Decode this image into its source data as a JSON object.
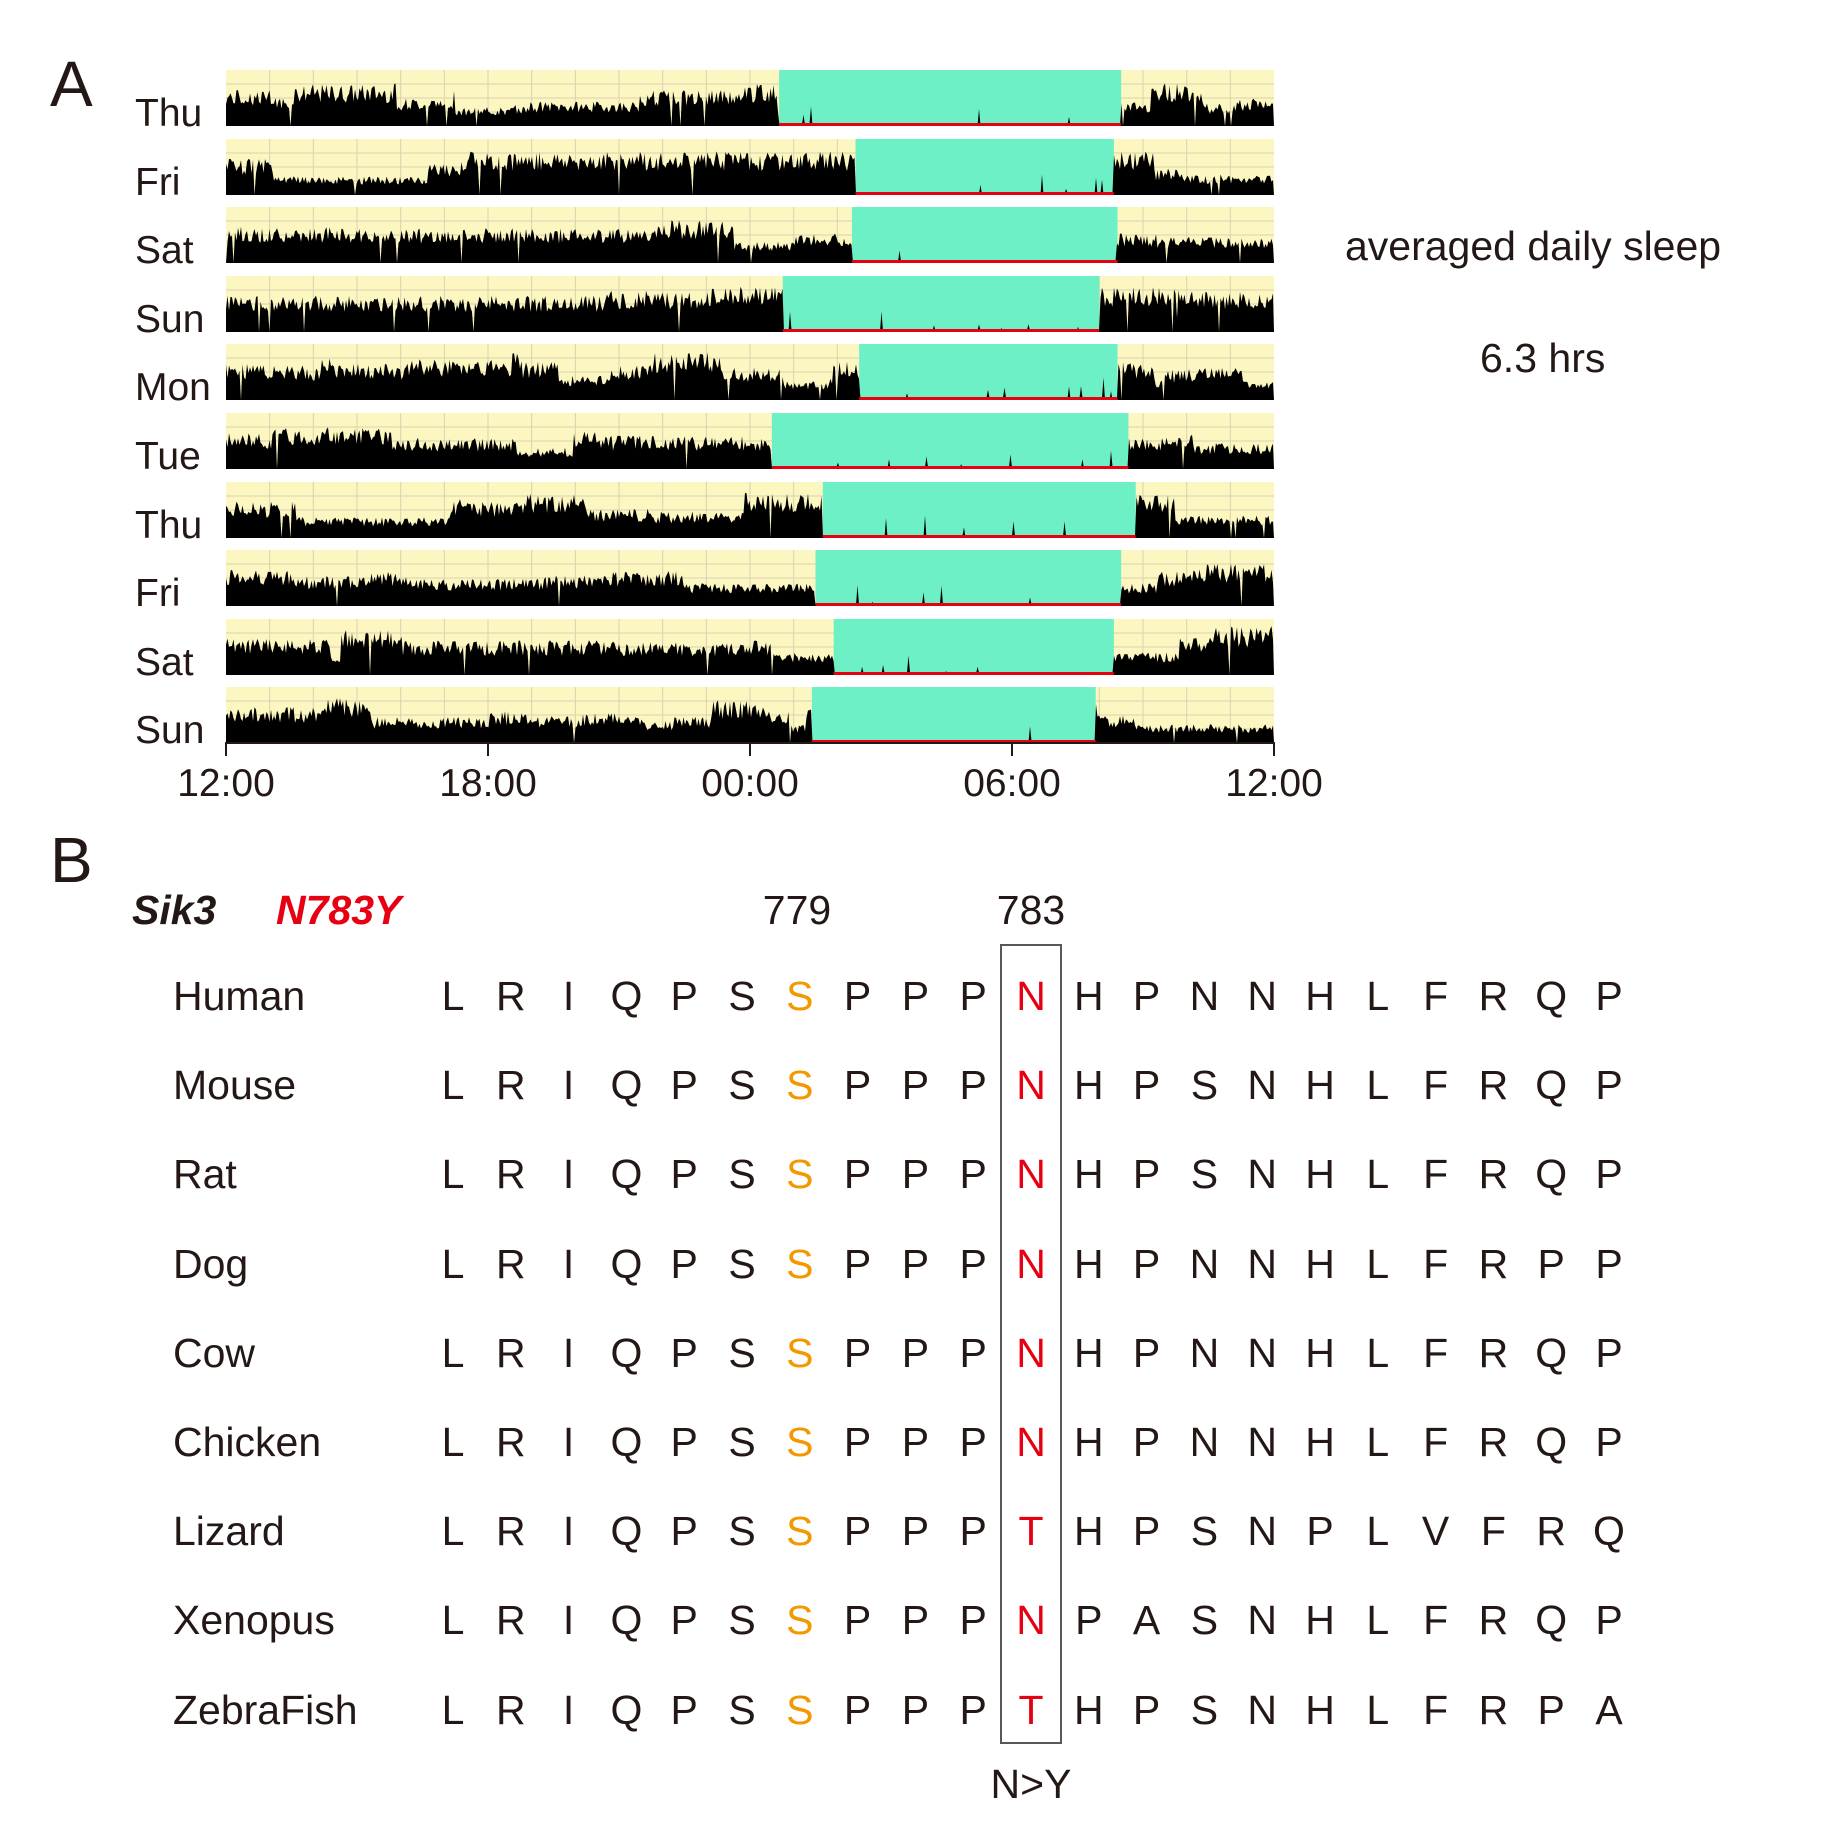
{
  "panel_a": {
    "letter": "A",
    "days": [
      {
        "label": "Thu",
        "lights_off": "00:40",
        "lights_on": "08:30"
      },
      {
        "label": "Fri",
        "lights_off": "02:25",
        "lights_on": "08:20"
      },
      {
        "label": "Sat",
        "lights_off": "02:20",
        "lights_on": "08:25"
      },
      {
        "label": "Sun",
        "lights_off": "00:45",
        "lights_on": "08:00"
      },
      {
        "label": "Mon",
        "lights_off": "02:30",
        "lights_on": "08:25"
      },
      {
        "label": "Tue",
        "lights_off": "00:30",
        "lights_on": "08:40"
      },
      {
        "label": "Thu",
        "lights_off": "01:40",
        "lights_on": "08:50"
      },
      {
        "label": "Fri",
        "lights_off": "01:30",
        "lights_on": "08:30"
      },
      {
        "label": "Sat",
        "lights_off": "01:55",
        "lights_on": "08:20"
      },
      {
        "label": "Sun",
        "lights_off": "01:25",
        "lights_on": "07:55"
      }
    ],
    "x_ticks": [
      "12:00",
      "18:00",
      "00:00",
      "06:00",
      "12:00"
    ],
    "summary_label": "averaged daily sleep",
    "summary_value": "6.3 hrs",
    "colors": {
      "background": "#fcf6c1",
      "sleep_period": "#6ef0c6",
      "activity": "#000000",
      "sleep_line": "#e60012"
    }
  },
  "panel_b": {
    "letter": "B",
    "gene": "Sik3",
    "mutation": "N783Y",
    "position_labels": [
      "779",
      "783"
    ],
    "caption": "N>Y",
    "alignment": [
      {
        "species": "Human",
        "residues": [
          "L",
          "R",
          "I",
          "Q",
          "P",
          "S",
          "S",
          "P",
          "P",
          "P",
          "N",
          "H",
          "P",
          "N",
          "N",
          "H",
          "L",
          "F",
          "R",
          "Q",
          "P"
        ]
      },
      {
        "species": "Mouse",
        "residues": [
          "L",
          "R",
          "I",
          "Q",
          "P",
          "S",
          "S",
          "P",
          "P",
          "P",
          "N",
          "H",
          "P",
          "S",
          "N",
          "H",
          "L",
          "F",
          "R",
          "Q",
          "P"
        ]
      },
      {
        "species": "Rat",
        "residues": [
          "L",
          "R",
          "I",
          "Q",
          "P",
          "S",
          "S",
          "P",
          "P",
          "P",
          "N",
          "H",
          "P",
          "S",
          "N",
          "H",
          "L",
          "F",
          "R",
          "Q",
          "P"
        ]
      },
      {
        "species": "Dog",
        "residues": [
          "L",
          "R",
          "I",
          "Q",
          "P",
          "S",
          "S",
          "P",
          "P",
          "P",
          "N",
          "H",
          "P",
          "N",
          "N",
          "H",
          "L",
          "F",
          "R",
          "P",
          "P"
        ]
      },
      {
        "species": "Cow",
        "residues": [
          "L",
          "R",
          "I",
          "Q",
          "P",
          "S",
          "S",
          "P",
          "P",
          "P",
          "N",
          "H",
          "P",
          "N",
          "N",
          "H",
          "L",
          "F",
          "R",
          "Q",
          "P"
        ]
      },
      {
        "species": "Chicken",
        "residues": [
          "L",
          "R",
          "I",
          "Q",
          "P",
          "S",
          "S",
          "P",
          "P",
          "P",
          "N",
          "H",
          "P",
          "N",
          "N",
          "H",
          "L",
          "F",
          "R",
          "Q",
          "P"
        ]
      },
      {
        "species": "Lizard",
        "residues": [
          "L",
          "R",
          "I",
          "Q",
          "P",
          "S",
          "S",
          "P",
          "P",
          "P",
          "T",
          "H",
          "P",
          "S",
          "N",
          "P",
          "L",
          "V",
          "F",
          "R",
          "Q"
        ]
      },
      {
        "species": "Xenopus",
        "residues": [
          "L",
          "R",
          "I",
          "Q",
          "P",
          "S",
          "S",
          "P",
          "P",
          "P",
          "N",
          "P",
          "A",
          "S",
          "N",
          "H",
          "L",
          "F",
          "R",
          "Q",
          "P"
        ]
      },
      {
        "species": "ZebraFish",
        "residues": [
          "L",
          "R",
          "I",
          "Q",
          "P",
          "S",
          "S",
          "P",
          "P",
          "P",
          "T",
          "H",
          "P",
          "S",
          "N",
          "H",
          "L",
          "F",
          "R",
          "P",
          "A"
        ]
      }
    ],
    "highlight_column": 6,
    "mutation_column": 10,
    "colors": {
      "highlight": "#f39800",
      "mutation": "#e60012"
    }
  }
}
